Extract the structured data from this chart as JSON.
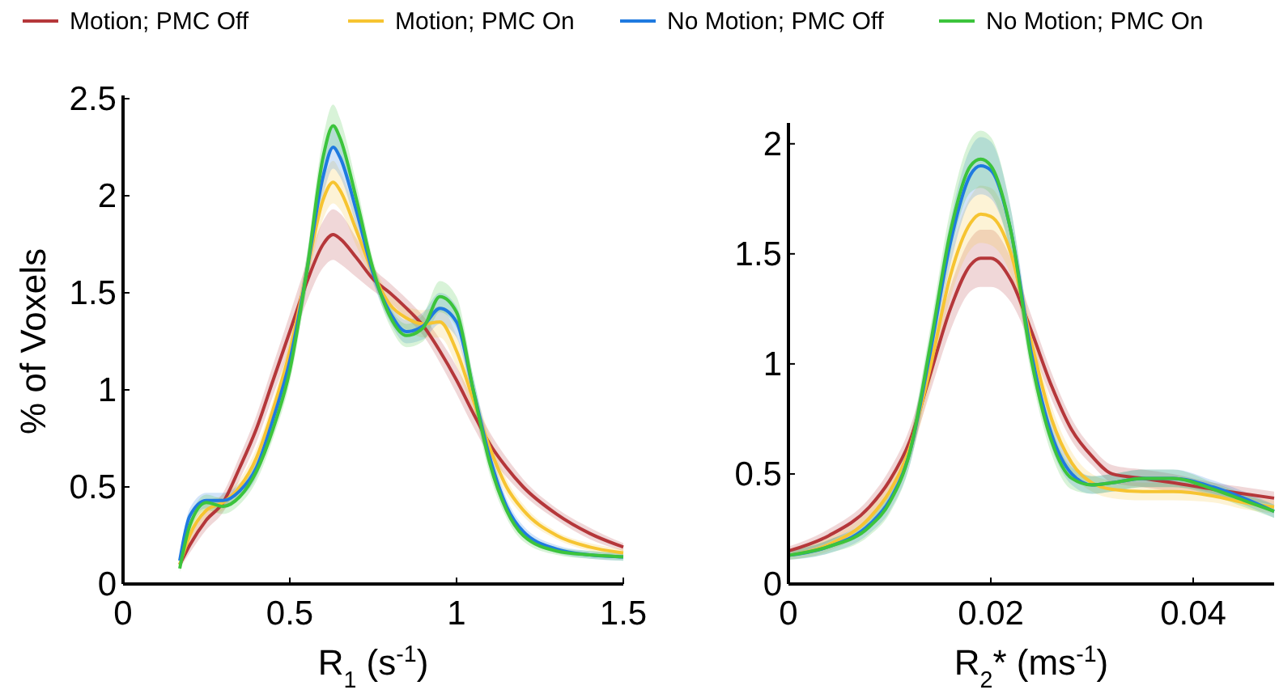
{
  "chart_data": [
    {
      "type": "line",
      "xlabel": "R$_{1}$ (s$^{-1}$)",
      "ylabel": "% of Voxels",
      "legend": "top",
      "line_style": "solid",
      "marker": "none",
      "xlim": [
        0,
        1.5
      ],
      "ylim": [
        0,
        2.5
      ],
      "xticks": [
        0,
        0.5,
        1,
        1.5
      ],
      "yticks": [
        0,
        0.5,
        1,
        1.5,
        2,
        2.5
      ],
      "x": [
        0.17,
        0.2,
        0.25,
        0.3,
        0.35,
        0.4,
        0.45,
        0.5,
        0.55,
        0.6,
        0.63,
        0.65,
        0.7,
        0.75,
        0.8,
        0.85,
        0.9,
        0.95,
        1.0,
        1.05,
        1.1,
        1.15,
        1.2,
        1.3,
        1.4,
        1.5
      ],
      "series": [
        {
          "name": "Motion; PMC Off",
          "color": "#b5373a",
          "values": [
            0.1,
            0.2,
            0.33,
            0.42,
            0.6,
            0.8,
            1.05,
            1.3,
            1.55,
            1.75,
            1.8,
            1.78,
            1.68,
            1.57,
            1.5,
            1.42,
            1.33,
            1.2,
            1.05,
            0.88,
            0.72,
            0.6,
            0.5,
            0.36,
            0.26,
            0.19
          ],
          "lower": [
            0.08,
            0.16,
            0.28,
            0.37,
            0.54,
            0.73,
            0.97,
            1.21,
            1.45,
            1.63,
            1.67,
            1.65,
            1.58,
            1.51,
            1.45,
            1.37,
            1.28,
            1.14,
            0.98,
            0.81,
            0.66,
            0.55,
            0.46,
            0.33,
            0.23,
            0.17
          ],
          "upper": [
            0.12,
            0.24,
            0.38,
            0.47,
            0.66,
            0.87,
            1.13,
            1.39,
            1.65,
            1.87,
            1.93,
            1.91,
            1.78,
            1.63,
            1.55,
            1.47,
            1.38,
            1.26,
            1.12,
            0.95,
            0.78,
            0.65,
            0.54,
            0.39,
            0.29,
            0.21
          ]
        },
        {
          "name": "Motion; PMC On",
          "color": "#f6c431",
          "values": [
            0.1,
            0.25,
            0.38,
            0.42,
            0.5,
            0.65,
            0.9,
            1.2,
            1.6,
            1.98,
            2.07,
            2.03,
            1.82,
            1.6,
            1.44,
            1.37,
            1.34,
            1.35,
            1.2,
            0.95,
            0.7,
            0.5,
            0.38,
            0.25,
            0.19,
            0.16
          ],
          "lower": [
            0.08,
            0.21,
            0.34,
            0.38,
            0.46,
            0.6,
            0.85,
            1.14,
            1.52,
            1.88,
            1.96,
            1.93,
            1.74,
            1.55,
            1.39,
            1.31,
            1.27,
            1.27,
            1.12,
            0.88,
            0.64,
            0.46,
            0.35,
            0.23,
            0.17,
            0.14
          ],
          "upper": [
            0.12,
            0.29,
            0.42,
            0.46,
            0.54,
            0.7,
            0.95,
            1.26,
            1.68,
            2.08,
            2.18,
            2.13,
            1.9,
            1.65,
            1.49,
            1.43,
            1.41,
            1.43,
            1.28,
            1.02,
            0.76,
            0.54,
            0.41,
            0.27,
            0.21,
            0.18
          ]
        },
        {
          "name": "No Motion; PMC Off",
          "color": "#1f7ae0",
          "values": [
            0.12,
            0.35,
            0.43,
            0.43,
            0.48,
            0.6,
            0.85,
            1.15,
            1.6,
            2.1,
            2.25,
            2.2,
            1.92,
            1.6,
            1.4,
            1.3,
            1.33,
            1.42,
            1.35,
            1.0,
            0.65,
            0.4,
            0.27,
            0.18,
            0.15,
            0.14
          ],
          "lower": [
            0.1,
            0.31,
            0.39,
            0.39,
            0.44,
            0.55,
            0.8,
            1.09,
            1.52,
            2.0,
            2.14,
            2.1,
            1.84,
            1.55,
            1.35,
            1.24,
            1.26,
            1.34,
            1.27,
            0.93,
            0.59,
            0.36,
            0.24,
            0.16,
            0.13,
            0.12
          ],
          "upper": [
            0.14,
            0.39,
            0.47,
            0.47,
            0.52,
            0.65,
            0.9,
            1.21,
            1.68,
            2.2,
            2.36,
            2.3,
            2.0,
            1.65,
            1.45,
            1.36,
            1.4,
            1.5,
            1.43,
            1.07,
            0.71,
            0.44,
            0.3,
            0.2,
            0.17,
            0.16
          ]
        },
        {
          "name": "No Motion; PMC On",
          "color": "#3cc43c",
          "values": [
            0.08,
            0.3,
            0.42,
            0.4,
            0.45,
            0.58,
            0.8,
            1.1,
            1.6,
            2.2,
            2.36,
            2.3,
            1.98,
            1.62,
            1.38,
            1.28,
            1.32,
            1.48,
            1.4,
            1.0,
            0.62,
            0.38,
            0.25,
            0.17,
            0.15,
            0.14
          ],
          "lower": [
            0.06,
            0.26,
            0.38,
            0.36,
            0.41,
            0.53,
            0.75,
            1.04,
            1.52,
            2.1,
            2.25,
            2.2,
            1.9,
            1.57,
            1.33,
            1.22,
            1.25,
            1.4,
            1.32,
            0.93,
            0.56,
            0.34,
            0.22,
            0.15,
            0.13,
            0.12
          ],
          "upper": [
            0.1,
            0.34,
            0.46,
            0.44,
            0.49,
            0.63,
            0.85,
            1.16,
            1.68,
            2.3,
            2.47,
            2.4,
            2.06,
            1.67,
            1.43,
            1.34,
            1.39,
            1.56,
            1.48,
            1.07,
            0.68,
            0.42,
            0.28,
            0.19,
            0.17,
            0.16
          ]
        }
      ]
    },
    {
      "type": "line",
      "xlabel": "R$_{2}$* (ms$^{-1}$)",
      "line_style": "solid",
      "marker": "none",
      "xlim": [
        0,
        0.048
      ],
      "ylim": [
        0,
        2.08
      ],
      "xticks": [
        0,
        0.02,
        0.04
      ],
      "yticks": [
        0,
        0.5,
        1,
        1.5,
        2
      ],
      "x": [
        0,
        0.004,
        0.008,
        0.01,
        0.012,
        0.014,
        0.016,
        0.018,
        0.019,
        0.02,
        0.022,
        0.024,
        0.026,
        0.028,
        0.03,
        0.032,
        0.035,
        0.038,
        0.042,
        0.045,
        0.048
      ],
      "series": [
        {
          "color": "#b5373a",
          "values": [
            0.15,
            0.22,
            0.35,
            0.47,
            0.65,
            0.95,
            1.25,
            1.45,
            1.48,
            1.48,
            1.38,
            1.15,
            0.9,
            0.7,
            0.58,
            0.5,
            0.48,
            0.46,
            0.43,
            0.41,
            0.39
          ],
          "lower": [
            0.13,
            0.19,
            0.31,
            0.42,
            0.59,
            0.87,
            1.15,
            1.33,
            1.35,
            1.35,
            1.28,
            1.08,
            0.84,
            0.65,
            0.54,
            0.46,
            0.44,
            0.42,
            0.4,
            0.38,
            0.36
          ],
          "upper": [
            0.17,
            0.25,
            0.39,
            0.52,
            0.71,
            1.03,
            1.35,
            1.57,
            1.61,
            1.61,
            1.48,
            1.22,
            0.96,
            0.75,
            0.62,
            0.54,
            0.52,
            0.5,
            0.46,
            0.44,
            0.42
          ]
        },
        {
          "color": "#f6c431",
          "values": [
            0.13,
            0.18,
            0.3,
            0.42,
            0.62,
            0.98,
            1.4,
            1.64,
            1.68,
            1.67,
            1.5,
            1.1,
            0.75,
            0.55,
            0.46,
            0.43,
            0.42,
            0.42,
            0.4,
            0.37,
            0.35
          ],
          "lower": [
            0.11,
            0.15,
            0.26,
            0.37,
            0.56,
            0.9,
            1.3,
            1.52,
            1.55,
            1.54,
            1.4,
            1.03,
            0.69,
            0.5,
            0.42,
            0.39,
            0.38,
            0.38,
            0.37,
            0.34,
            0.32
          ],
          "upper": [
            0.15,
            0.21,
            0.34,
            0.47,
            0.68,
            1.06,
            1.5,
            1.76,
            1.81,
            1.8,
            1.6,
            1.17,
            0.81,
            0.6,
            0.5,
            0.47,
            0.46,
            0.46,
            0.43,
            0.4,
            0.38
          ]
        },
        {
          "color": "#1f7ae0",
          "values": [
            0.13,
            0.17,
            0.27,
            0.38,
            0.6,
            1.05,
            1.55,
            1.86,
            1.9,
            1.88,
            1.6,
            1.05,
            0.68,
            0.5,
            0.45,
            0.46,
            0.48,
            0.48,
            0.44,
            0.39,
            0.33
          ],
          "lower": [
            0.11,
            0.14,
            0.23,
            0.33,
            0.54,
            0.97,
            1.45,
            1.74,
            1.77,
            1.75,
            1.5,
            0.98,
            0.62,
            0.45,
            0.41,
            0.42,
            0.44,
            0.44,
            0.41,
            0.36,
            0.3
          ],
          "upper": [
            0.15,
            0.2,
            0.31,
            0.43,
            0.66,
            1.13,
            1.65,
            1.98,
            2.03,
            2.01,
            1.7,
            1.12,
            0.74,
            0.55,
            0.49,
            0.5,
            0.52,
            0.52,
            0.47,
            0.42,
            0.36
          ]
        },
        {
          "color": "#3cc43c",
          "values": [
            0.13,
            0.17,
            0.26,
            0.37,
            0.6,
            1.08,
            1.6,
            1.9,
            1.93,
            1.9,
            1.6,
            1.02,
            0.65,
            0.48,
            0.45,
            0.46,
            0.48,
            0.48,
            0.43,
            0.38,
            0.33
          ],
          "lower": [
            0.11,
            0.14,
            0.22,
            0.32,
            0.54,
            1.0,
            1.5,
            1.78,
            1.8,
            1.77,
            1.5,
            0.95,
            0.59,
            0.43,
            0.41,
            0.42,
            0.44,
            0.44,
            0.4,
            0.35,
            0.3
          ],
          "upper": [
            0.15,
            0.2,
            0.3,
            0.42,
            0.66,
            1.16,
            1.7,
            2.02,
            2.06,
            2.03,
            1.7,
            1.09,
            0.71,
            0.53,
            0.49,
            0.5,
            0.52,
            0.52,
            0.46,
            0.41,
            0.36
          ]
        }
      ]
    }
  ]
}
